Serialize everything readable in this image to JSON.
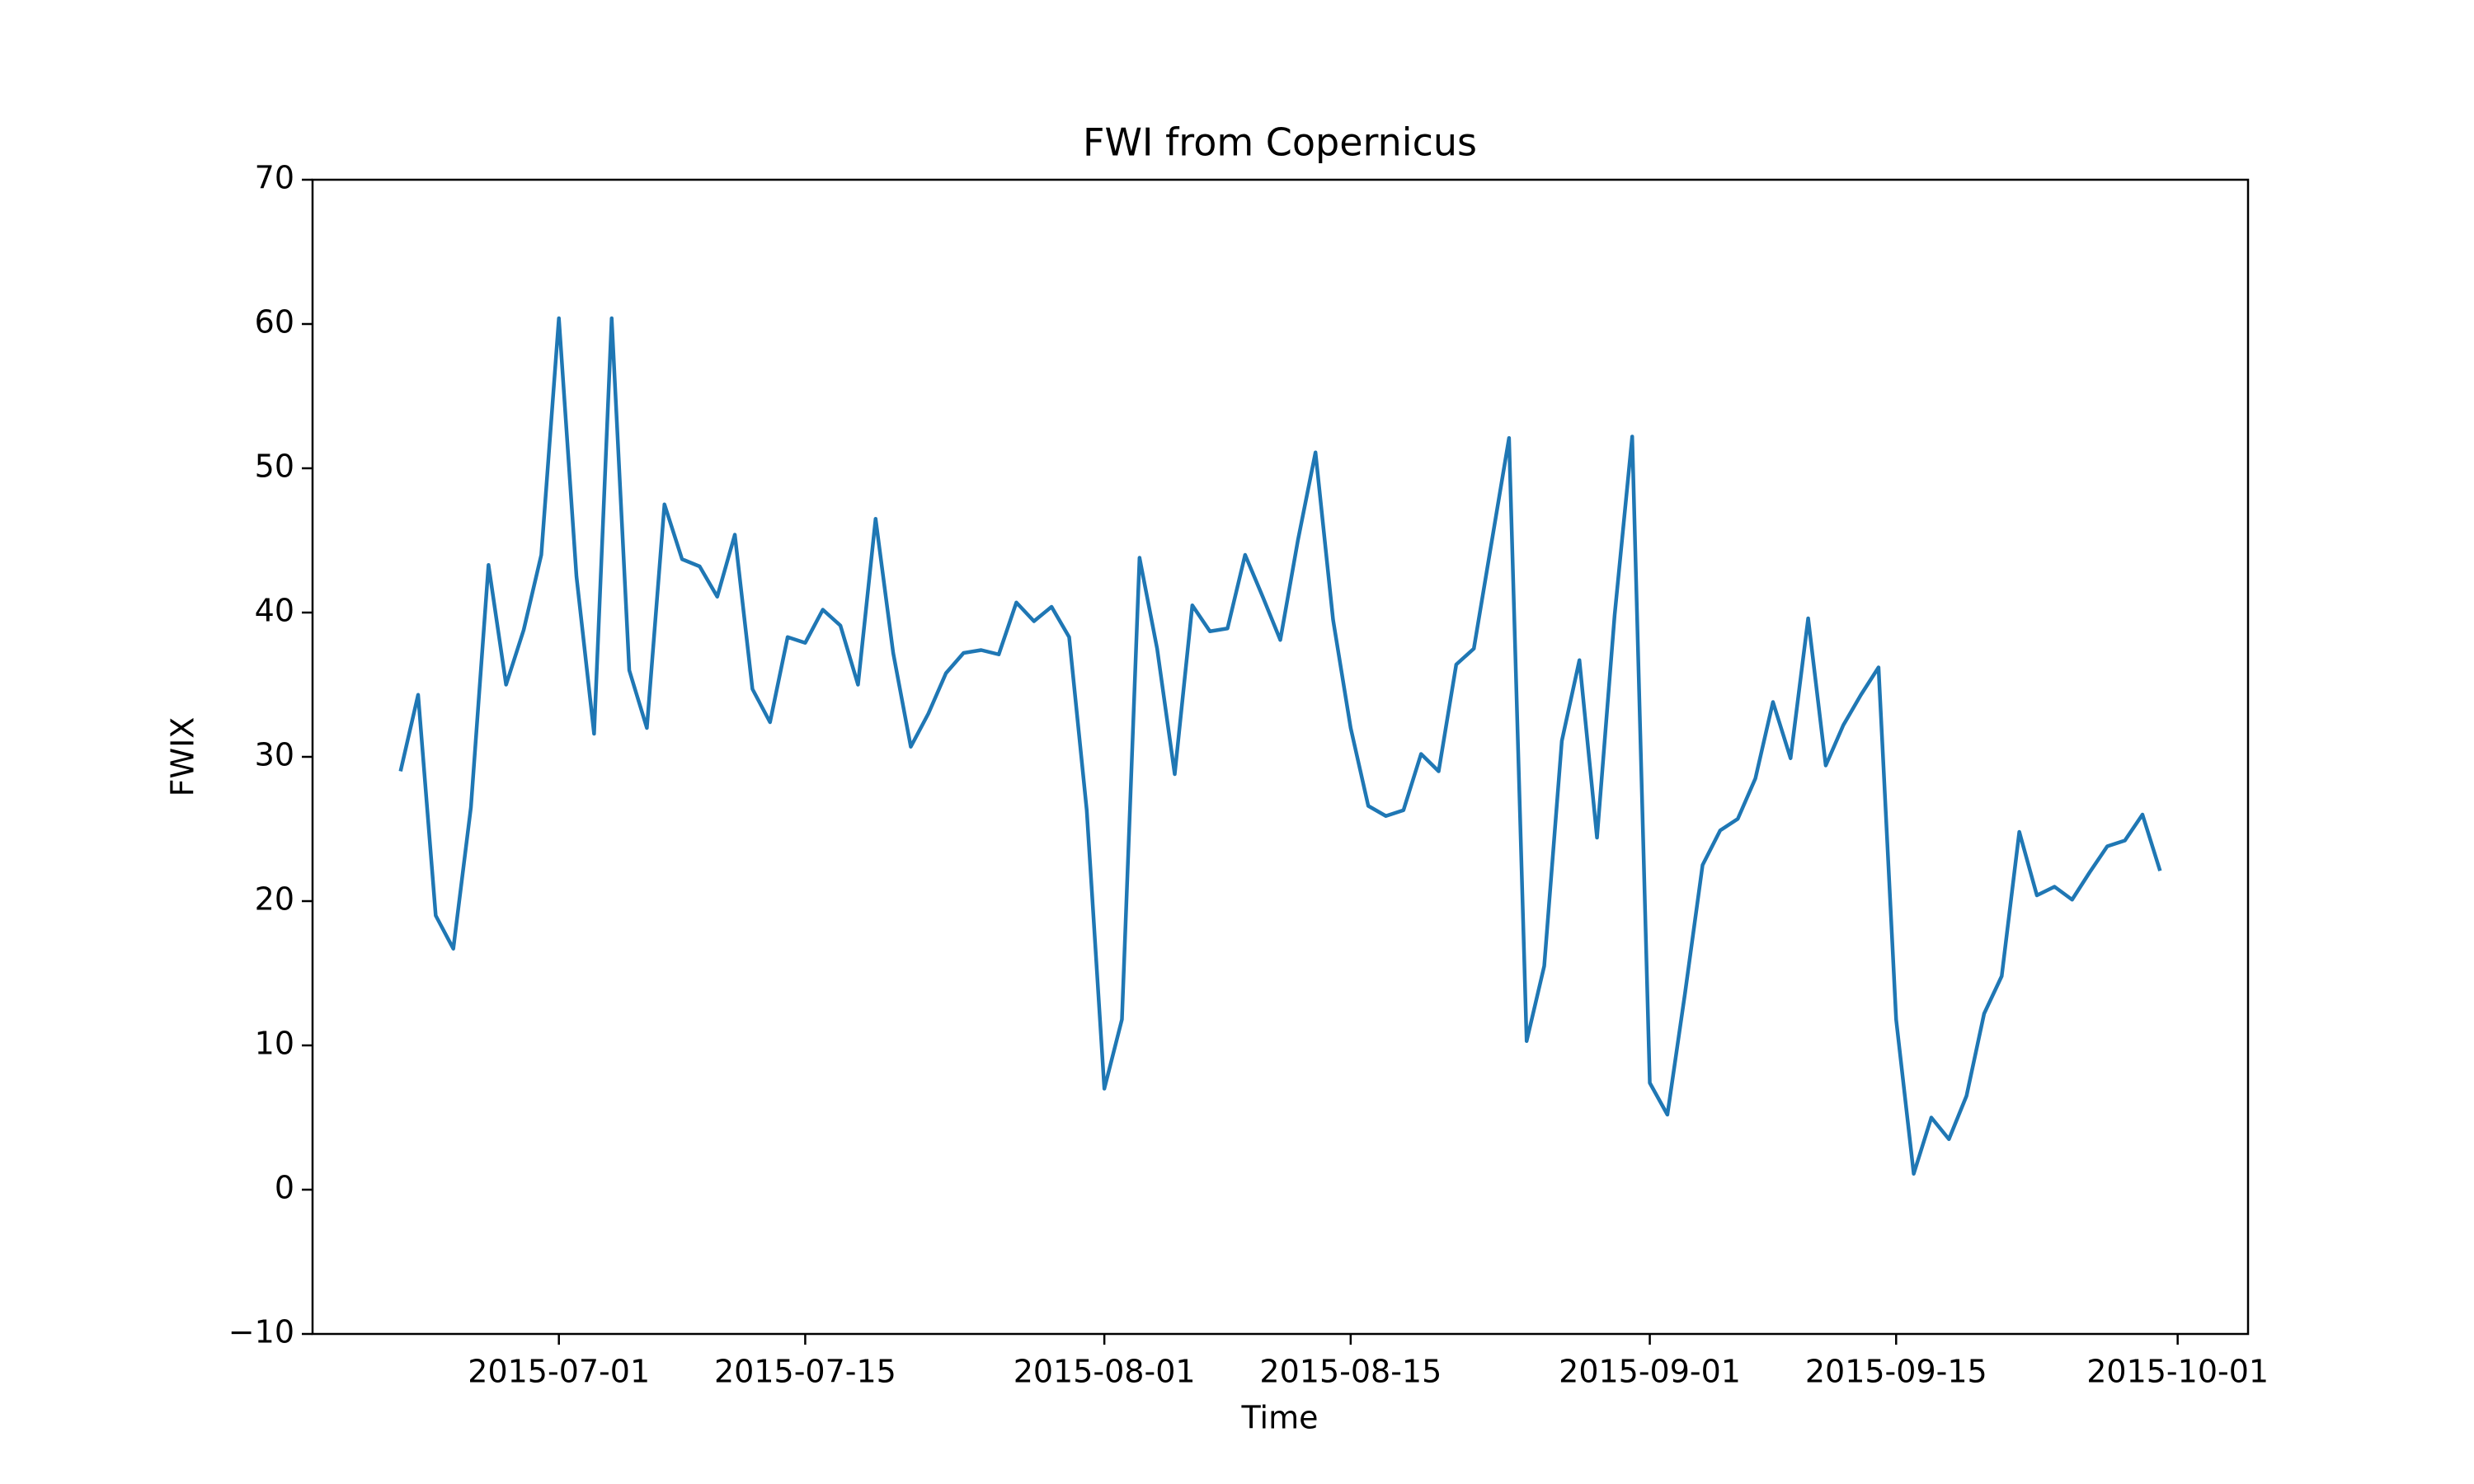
{
  "chart_data": {
    "type": "line",
    "title": "FWI from Copernicus",
    "x_label": "Time",
    "y_label": "FWIX",
    "x": [
      "2015-06-22",
      "2015-06-23",
      "2015-06-24",
      "2015-06-25",
      "2015-06-26",
      "2015-06-27",
      "2015-06-28",
      "2015-06-29",
      "2015-06-30",
      "2015-07-01",
      "2015-07-02",
      "2015-07-03",
      "2015-07-04",
      "2015-07-05",
      "2015-07-06",
      "2015-07-07",
      "2015-07-08",
      "2015-07-09",
      "2015-07-10",
      "2015-07-11",
      "2015-07-12",
      "2015-07-13",
      "2015-07-14",
      "2015-07-15",
      "2015-07-16",
      "2015-07-17",
      "2015-07-18",
      "2015-07-19",
      "2015-07-20",
      "2015-07-21",
      "2015-07-22",
      "2015-07-23",
      "2015-07-24",
      "2015-07-25",
      "2015-07-26",
      "2015-07-27",
      "2015-07-28",
      "2015-07-29",
      "2015-07-30",
      "2015-07-31",
      "2015-08-01",
      "2015-08-02",
      "2015-08-03",
      "2015-08-04",
      "2015-08-05",
      "2015-08-06",
      "2015-08-07",
      "2015-08-08",
      "2015-08-09",
      "2015-08-10",
      "2015-08-11",
      "2015-08-12",
      "2015-08-13",
      "2015-08-14",
      "2015-08-15",
      "2015-08-16",
      "2015-08-17",
      "2015-08-18",
      "2015-08-19",
      "2015-08-20",
      "2015-08-21",
      "2015-08-22",
      "2015-08-23",
      "2015-08-24",
      "2015-08-25",
      "2015-08-26",
      "2015-08-27",
      "2015-08-28",
      "2015-08-29",
      "2015-08-30",
      "2015-08-31",
      "2015-09-01",
      "2015-09-02",
      "2015-09-03",
      "2015-09-04",
      "2015-09-05",
      "2015-09-06",
      "2015-09-07",
      "2015-09-08",
      "2015-09-09",
      "2015-09-10",
      "2015-09-11",
      "2015-09-12",
      "2015-09-13",
      "2015-09-14",
      "2015-09-15",
      "2015-09-16",
      "2015-09-17",
      "2015-09-18",
      "2015-09-19",
      "2015-09-20",
      "2015-09-21",
      "2015-09-22",
      "2015-09-23",
      "2015-09-24",
      "2015-09-25",
      "2015-09-26",
      "2015-09-27",
      "2015-09-28",
      "2015-09-29",
      "2015-09-30"
    ],
    "series": [
      {
        "color": "#1f77b4",
        "values": [
          29,
          34.3,
          19,
          16.7,
          26.5,
          43.3,
          35,
          38.8,
          44,
          60.4,
          42.5,
          31.6,
          60.4,
          36,
          32,
          47.5,
          43.7,
          43.2,
          41.1,
          45.4,
          34.7,
          32.4,
          38.3,
          37.9,
          40.2,
          39.1,
          35,
          46.5,
          37.2,
          30.7,
          33,
          35.8,
          37.2,
          37.4,
          37.1,
          40.7,
          39.4,
          40.4,
          38.3,
          26.3,
          7,
          11.8,
          43.8,
          37.5,
          28.8,
          40.5,
          38.7,
          38.9,
          44,
          41.1,
          38.1,
          45,
          51.1,
          39.5,
          32,
          26.6,
          25.9,
          26.3,
          30.2,
          29,
          36.4,
          37.5,
          44.8,
          52.1,
          10.3,
          15.5,
          31.1,
          36.7,
          24.4,
          39.8,
          52.2,
          7.4,
          5.2,
          13.6,
          22.5,
          24.9,
          25.7,
          28.5,
          33.8,
          29.9,
          39.6,
          29.4,
          32.2,
          34.3,
          36.2,
          11.8,
          1.1,
          5,
          3.5,
          6.5,
          12.2,
          14.8,
          24.8,
          20.4,
          21,
          20.1,
          22,
          23.8,
          24.2,
          26,
          22.1
        ]
      }
    ],
    "xlim": [
      "2015-06-17",
      "2015-10-05"
    ],
    "xticks": [
      "2015-07-01",
      "2015-07-15",
      "2015-08-01",
      "2015-08-15",
      "2015-09-01",
      "2015-09-15",
      "2015-10-01"
    ],
    "ylim": [
      -10,
      70
    ],
    "yticks": [
      {
        "value": -10,
        "label": "−10"
      },
      0,
      10,
      20,
      30,
      40,
      50,
      60,
      70
    ]
  }
}
